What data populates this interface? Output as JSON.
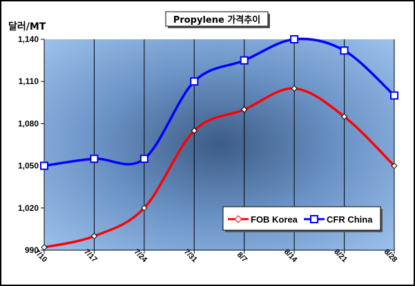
{
  "chart_data": {
    "type": "line",
    "title": "Propylene 가격추이",
    "ylabel": "달러/MT",
    "xlabel": "",
    "categories": [
      "7/10",
      "7/17",
      "7/24",
      "7/31",
      "8/7",
      "8/14",
      "8/21",
      "8/28"
    ],
    "yticks": [
      "990",
      "1,020",
      "1,050",
      "1,080",
      "1,110",
      "1,140"
    ],
    "ylim": [
      990,
      1140
    ],
    "grid": "vertical",
    "legend_position": "bottom-right",
    "series": [
      {
        "name": "FOB Korea",
        "color": "#ff0000",
        "marker": "diamond",
        "values": [
          992,
          1000,
          1020,
          1075,
          1090,
          1105,
          1085,
          1050
        ]
      },
      {
        "name": "CFR China",
        "color": "#0000ff",
        "marker": "square",
        "values": [
          1050,
          1055,
          1055,
          1110,
          1125,
          1140,
          1132,
          1100
        ]
      }
    ]
  }
}
